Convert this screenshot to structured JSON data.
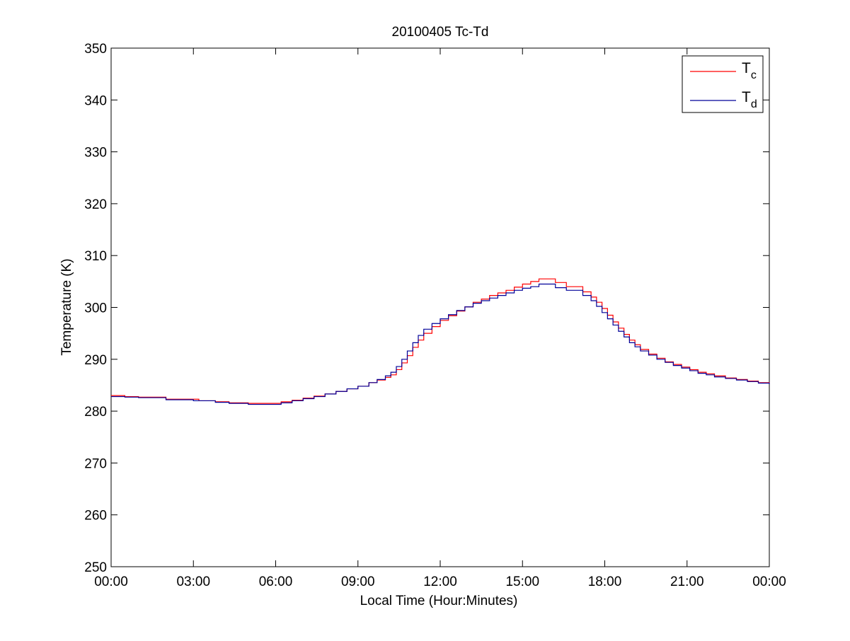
{
  "chart_data": {
    "type": "line",
    "title": "20100405 Tc-Td",
    "xlabel": "Local Time (Hour:Minutes)",
    "ylabel": "Temperature (K)",
    "x_unit": "hours",
    "xlim": [
      0,
      24
    ],
    "ylim": [
      250,
      350
    ],
    "x_ticks": [
      0,
      3,
      6,
      9,
      12,
      15,
      18,
      21,
      24
    ],
    "x_tick_labels": [
      "00:00",
      "03:00",
      "06:00",
      "09:00",
      "12:00",
      "15:00",
      "18:00",
      "21:00",
      "00:00"
    ],
    "y_ticks": [
      250,
      260,
      270,
      280,
      290,
      300,
      310,
      320,
      330,
      340,
      350
    ],
    "y_tick_labels": [
      "250",
      "260",
      "270",
      "280",
      "290",
      "300",
      "310",
      "320",
      "330",
      "340",
      "350"
    ],
    "grid": false,
    "legend": "top-right",
    "step": true,
    "series": [
      {
        "name": "Tc",
        "legend_main": "T",
        "legend_sub": "c",
        "color": "#ff0000",
        "x": [
          0,
          0.5,
          1,
          2,
          3.2,
          3.8,
          4.3,
          5,
          5.7,
          6.2,
          6.6,
          7,
          7.4,
          7.8,
          8.2,
          8.6,
          9,
          9.4,
          9.7,
          10,
          10.2,
          10.4,
          10.6,
          10.8,
          11,
          11.2,
          11.4,
          11.7,
          12,
          12.3,
          12.6,
          12.9,
          13.2,
          13.5,
          13.8,
          14.1,
          14.4,
          14.7,
          15,
          15.3,
          15.6,
          16.2,
          16.6,
          17.2,
          17.5,
          17.7,
          17.9,
          18.1,
          18.3,
          18.5,
          18.7,
          18.9,
          19.1,
          19.3,
          19.6,
          19.9,
          20.2,
          20.5,
          20.8,
          21.1,
          21.4,
          21.7,
          22,
          22.4,
          22.8,
          23.2,
          23.6,
          24
        ],
        "y": [
          283,
          282.8,
          282.7,
          282.3,
          282,
          281.8,
          281.6,
          281.5,
          281.5,
          281.8,
          282.1,
          282.5,
          282.9,
          283.3,
          283.8,
          284.3,
          284.8,
          285.5,
          286,
          286.5,
          287,
          288,
          289.3,
          290.7,
          292.3,
          293.7,
          295,
          296.3,
          297.5,
          298.4,
          299.3,
          300.1,
          301,
          301.6,
          302.3,
          302.8,
          303.3,
          303.9,
          304.5,
          305,
          305.5,
          304.8,
          304,
          303,
          302,
          301,
          299.8,
          298.5,
          297.2,
          296,
          294.8,
          293.7,
          292.8,
          291.9,
          291,
          290.2,
          289.5,
          289,
          288.5,
          288,
          287.5,
          287.2,
          286.8,
          286.4,
          286.1,
          285.8,
          285.5,
          285.3
        ]
      },
      {
        "name": "Td",
        "legend_main": "T",
        "legend_sub": "d",
        "color": "#000099",
        "x": [
          0,
          0.5,
          1,
          2,
          3,
          3.8,
          4.3,
          5,
          5.7,
          6.2,
          6.6,
          7,
          7.4,
          7.8,
          8.2,
          8.6,
          9,
          9.4,
          9.7,
          10,
          10.2,
          10.4,
          10.6,
          10.8,
          11,
          11.2,
          11.4,
          11.7,
          12,
          12.3,
          12.6,
          12.9,
          13.2,
          13.5,
          13.8,
          14.1,
          14.4,
          14.7,
          15,
          15.3,
          15.6,
          16.2,
          16.6,
          17.2,
          17.5,
          17.7,
          17.9,
          18.1,
          18.3,
          18.5,
          18.7,
          18.9,
          19.1,
          19.3,
          19.6,
          19.9,
          20.2,
          20.5,
          20.8,
          21.1,
          21.4,
          21.7,
          22,
          22.4,
          22.8,
          23.2,
          23.6,
          24
        ],
        "y": [
          282.8,
          282.7,
          282.6,
          282.2,
          282,
          281.7,
          281.5,
          281.3,
          281.3,
          281.6,
          282,
          282.4,
          282.8,
          283.3,
          283.8,
          284.3,
          284.8,
          285.5,
          286.1,
          286.8,
          287.5,
          288.6,
          290,
          291.6,
          293.2,
          294.6,
          295.8,
          296.9,
          297.8,
          298.6,
          299.4,
          300.1,
          300.8,
          301.3,
          301.8,
          302.3,
          302.8,
          303.3,
          303.7,
          304,
          304.5,
          303.8,
          303.3,
          302.3,
          301.3,
          300.2,
          299,
          297.8,
          296.6,
          295.4,
          294.3,
          293.2,
          292.4,
          291.6,
          290.8,
          290,
          289.4,
          288.8,
          288.3,
          287.8,
          287.3,
          287,
          286.6,
          286.3,
          286,
          285.7,
          285.4,
          285.2
        ]
      }
    ]
  }
}
